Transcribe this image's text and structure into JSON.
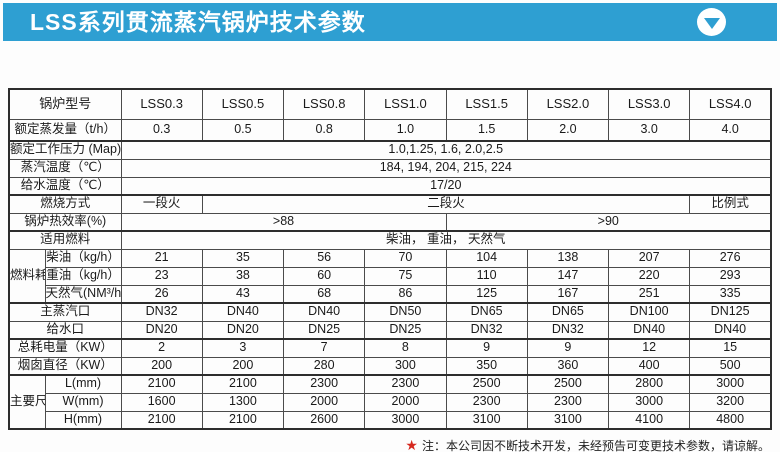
{
  "header": {
    "title": "LSS系列贯流蒸汽锅炉技术参数",
    "bar_color": "#2E9FD2",
    "collapse_icon": "down-triangle"
  },
  "table": {
    "rows": {
      "model": {
        "label": "锅炉型号",
        "values": [
          "LSS0.3",
          "LSS0.5",
          "LSS0.8",
          "LSS1.0",
          "LSS1.5",
          "LSS2.0",
          "LSS3.0",
          "LSS4.0"
        ]
      },
      "evaporation": {
        "label": "额定蒸发量（t/h）",
        "values": [
          "0.3",
          "0.5",
          "0.8",
          "1.0",
          "1.5",
          "2.0",
          "3.0",
          "4.0"
        ]
      },
      "pressure": {
        "label": "额定工作压力 (Map)",
        "value": "1.0,1.25, 1.6, 2.0,2.5"
      },
      "steam_temp": {
        "label": "蒸汽温度（℃）",
        "value": "184, 194, 204, 215, 224"
      },
      "feed_temp": {
        "label": "给水温度（℃）",
        "value": "17/20"
      },
      "combustion": {
        "label": "燃烧方式",
        "one_stage": "一段火",
        "two_stage": "二段火",
        "proportional": "比例式"
      },
      "efficiency": {
        "label": "锅炉热效率(%)",
        "low": ">88",
        "high": ">90"
      },
      "fuel_type": {
        "label": "适用燃料",
        "value": "柴油， 重油， 天然气"
      },
      "fuel_group_label": "燃料耗量",
      "diesel": {
        "label": "柴油（kg/h）",
        "values": [
          "21",
          "35",
          "56",
          "70",
          "104",
          "138",
          "207",
          "276"
        ]
      },
      "heavy_oil": {
        "label": "重油（kg/h）",
        "values": [
          "23",
          "38",
          "60",
          "75",
          "110",
          "147",
          "220",
          "293"
        ]
      },
      "natural_gas": {
        "label": "天然气(NM³/h)",
        "values": [
          "26",
          "43",
          "68",
          "86",
          "125",
          "167",
          "251",
          "335"
        ]
      },
      "steam_port": {
        "label": "主蒸汽口",
        "values": [
          "DN32",
          "DN40",
          "DN40",
          "DN50",
          "DN65",
          "DN65",
          "DN100",
          "DN125"
        ]
      },
      "feed_port": {
        "label": "给水口",
        "values": [
          "DN20",
          "DN20",
          "DN25",
          "DN25",
          "DN32",
          "DN32",
          "DN40",
          "DN40"
        ]
      },
      "power": {
        "label": "总耗电量（KW）",
        "values": [
          "2",
          "3",
          "7",
          "8",
          "9",
          "9",
          "12",
          "15"
        ]
      },
      "chimney": {
        "label": "烟囱直径（KW）",
        "values": [
          "200",
          "200",
          "280",
          "300",
          "350",
          "360",
          "400",
          "500"
        ]
      },
      "dims_group_label": "主要尺寸",
      "length": {
        "label": "L(mm)",
        "values": [
          "2100",
          "2100",
          "2300",
          "2300",
          "2500",
          "2500",
          "2800",
          "3000"
        ]
      },
      "width": {
        "label": "W(mm)",
        "values": [
          "1600",
          "1300",
          "2000",
          "2000",
          "2300",
          "2300",
          "3000",
          "3200"
        ]
      },
      "height": {
        "label": "H(mm)",
        "values": [
          "2100",
          "2100",
          "2600",
          "3000",
          "3100",
          "3100",
          "4100",
          "4800"
        ]
      }
    }
  },
  "footnote": {
    "star": "★",
    "text": "注：本公司因不断技术开发，未经预告可变更技术参数，请谅解。",
    "star_color": "#D6281E"
  }
}
